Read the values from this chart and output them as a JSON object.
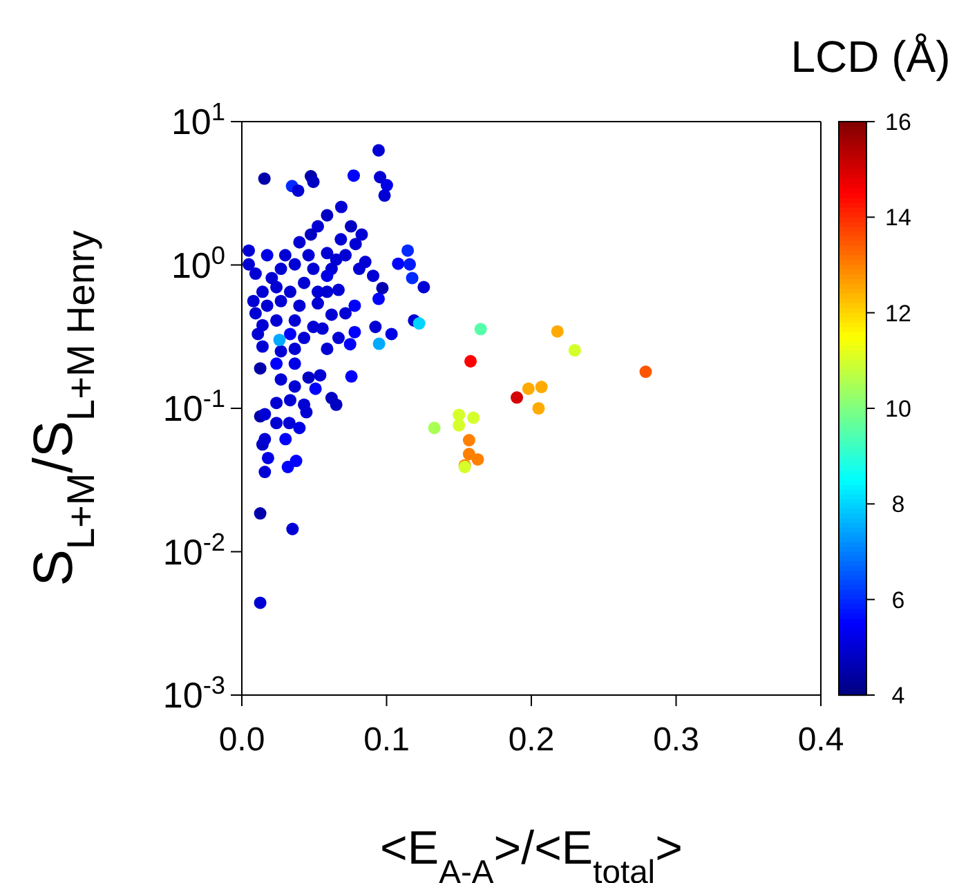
{
  "chart_data": {
    "type": "scatter",
    "xlabel": "<E$_{A-A}$>/<E$_{total}$>",
    "ylabel": "S$_{L+M}$/S$_{L+M Henry}$",
    "clabel": "LCD (Å)",
    "log": "y",
    "grid": false,
    "marker": "circle",
    "xlim": [
      0,
      0.4
    ],
    "xticks": [
      {
        "value": 0,
        "label": "0.0"
      },
      0.1,
      0.2,
      0.3,
      0.4
    ],
    "ylim": [
      0.001,
      10
    ],
    "yticks": [
      {
        "value": 0.001,
        "label": "10$^{-3}$"
      },
      {
        "value": 0.01,
        "label": "10$^{-2}$"
      },
      {
        "value": 0.1,
        "label": "10$^{-1}$"
      },
      {
        "value": 1,
        "label": "10$^{0}$"
      },
      {
        "value": 10,
        "label": "10$^{1}$"
      }
    ],
    "clim": [
      4,
      16
    ],
    "cticks": [
      4,
      6,
      8,
      10,
      12,
      14,
      16
    ],
    "x": [
      0.0945,
      0.0156,
      0.0347,
      0.0389,
      0.0477,
      0.0494,
      0.0773,
      0.0955,
      0.1002,
      0.0986,
      0.0687,
      0.0589,
      0.0754,
      0.0828,
      0.0525,
      0.0477,
      0.0684,
      0.0786,
      0.0398,
      0.1146,
      0.108,
      0.116,
      0.1177,
      0.1257,
      0.0853,
      0.0811,
      0.0907,
      0.0971,
      0.0945,
      0.0716,
      0.0652,
      0.062,
      0.0589,
      0.0668,
      0.078,
      0.0716,
      0.062,
      0.0923,
      0.1034,
      0.078,
      0.0748,
      0.0668,
      0.0589,
      0.0494,
      0.0557,
      0.043,
      0.0334,
      0.0095,
      0.0111,
      0.0048,
      0.0048,
      0.0175,
      0.03,
      0.027,
      0.0207,
      0.0366,
      0.0461,
      0.0589,
      0.0494,
      0.043,
      0.0525,
      0.0334,
      0.0239,
      0.0143,
      0.0095,
      0.008,
      0.0175,
      0.027,
      0.0398,
      0.0525,
      0.0589,
      0.0143,
      0.0239,
      0.0366,
      0.0143,
      0.027,
      0.0366,
      0.0127,
      0.0239,
      0.0366,
      0.0461,
      0.0541,
      0.0757,
      0.027,
      0.0366,
      0.0509,
      0.0239,
      0.0334,
      0.043,
      0.062,
      0.0652,
      0.0446,
      0.0127,
      0.0159,
      0.0239,
      0.0328,
      0.0398,
      0.0302,
      0.0143,
      0.0159,
      0.0181,
      0.0318,
      0.0375,
      0.0159,
      0.0127,
      0.035,
      0.0127,
      0.119,
      0.165,
      0.218,
      0.23,
      0.158,
      0.279,
      0.19,
      0.198,
      0.207,
      0.205,
      0.133,
      0.15,
      0.16,
      0.15,
      0.157,
      0.157,
      0.163,
      0.154,
      0.154,
      0.1225,
      0.0948,
      0.026
    ],
    "values": [
      6.3,
      4.0,
      3.55,
      3.3,
      4.16,
      3.8,
      4.2,
      4.1,
      3.6,
      3.05,
      2.54,
      2.22,
      1.86,
      1.63,
      1.86,
      1.63,
      1.51,
      1.4,
      1.44,
      1.26,
      1.02,
      1.01,
      0.81,
      0.7,
      1.05,
      0.94,
      0.84,
      0.69,
      0.58,
      1.17,
      1.09,
      0.94,
      0.84,
      0.67,
      0.52,
      0.46,
      0.45,
      0.37,
      0.33,
      0.34,
      0.28,
      0.31,
      0.26,
      0.37,
      0.36,
      0.31,
      0.33,
      0.46,
      0.33,
      1.26,
      1.01,
      1.17,
      1.17,
      0.94,
      0.81,
      1.01,
      1.17,
      1.21,
      0.94,
      0.75,
      0.65,
      0.65,
      0.7,
      0.65,
      0.87,
      0.56,
      0.52,
      0.56,
      0.52,
      0.54,
      0.65,
      0.38,
      0.41,
      0.41,
      0.27,
      0.25,
      0.26,
      0.19,
      0.205,
      0.205,
      0.164,
      0.17,
      0.167,
      0.159,
      0.142,
      0.137,
      0.109,
      0.114,
      0.106,
      0.118,
      0.106,
      0.094,
      0.088,
      0.091,
      0.079,
      0.079,
      0.073,
      0.061,
      0.056,
      0.061,
      0.045,
      0.039,
      0.043,
      0.036,
      0.0185,
      0.0144,
      0.0044,
      0.41,
      0.357,
      0.344,
      0.254,
      0.213,
      0.18,
      0.119,
      0.137,
      0.141,
      0.1,
      0.073,
      0.09,
      0.086,
      0.076,
      0.06,
      0.048,
      0.044,
      0.04,
      0.039,
      0.391,
      0.282,
      0.3
    ],
    "cvalues": [
      5,
      4.5,
      6,
      5,
      4.5,
      4.8,
      5.5,
      5,
      5.2,
      5,
      5,
      4.8,
      4.8,
      5,
      5,
      4.8,
      5,
      5,
      5,
      6,
      5.5,
      5.8,
      6,
      5,
      5,
      5,
      5,
      4.6,
      5.5,
      5,
      5,
      5,
      5.2,
      5,
      5.5,
      5,
      5,
      5,
      5.2,
      5.5,
      5.5,
      5,
      5,
      5,
      5,
      5,
      5.5,
      5,
      5,
      5,
      5,
      5.2,
      5,
      5,
      5,
      5,
      5,
      5,
      5,
      5,
      5,
      5,
      5,
      5,
      5,
      5,
      5,
      5,
      5,
      5,
      5,
      5,
      5,
      5,
      5,
      5,
      5,
      4.5,
      5.5,
      5.2,
      4.8,
      5,
      5.5,
      5,
      5,
      5.5,
      5,
      5,
      5,
      4.8,
      4.8,
      5,
      4.5,
      5,
      5,
      5,
      5.2,
      5.5,
      4.8,
      5,
      5.2,
      5.5,
      5.5,
      5,
      4.5,
      5,
      5,
      5,
      9.5,
      12.5,
      11,
      14.5,
      13.5,
      15,
      12.5,
      12.5,
      12.5,
      10.5,
      11,
      11,
      11,
      13,
      13,
      13,
      13,
      11,
      8,
      7.5,
      7.5
    ]
  }
}
